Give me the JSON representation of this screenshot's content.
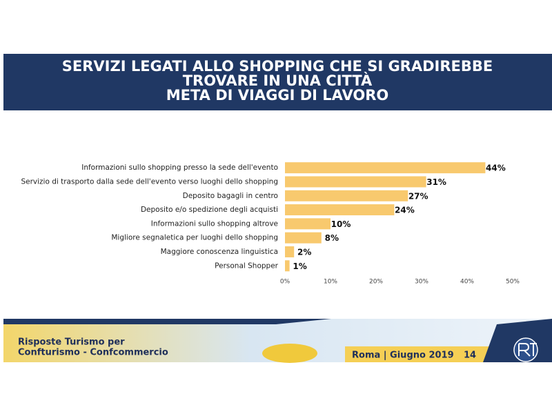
{
  "chart_data": {
    "type": "bar",
    "orientation": "horizontal",
    "title": [
      "SERVIZI LEGATI ALLO SHOPPING CHE SI GRADIREBBE",
      "TROVARE IN UNA CITTÀ",
      "META DI VIAGGI DI LAVORO"
    ],
    "categories": [
      "Informazioni sullo shopping presso la sede dell'evento",
      "Servizio di trasporto dalla sede dell'evento verso luoghi dello shopping",
      "Deposito bagagli in centro",
      "Deposito e/o spedizione degli acquisti",
      "Informazioni sullo shopping altrove",
      "Migliore segnaletica per luoghi dello shopping",
      "Maggiore conoscenza linguistica",
      "Personal Shopper"
    ],
    "values": [
      44,
      31,
      27,
      24,
      10,
      8,
      2,
      1
    ],
    "value_labels": [
      "44%",
      "31%",
      "27%",
      "24%",
      "10%",
      "8%",
      "2%",
      "1%"
    ],
    "color": "#f8c96e",
    "xlim": [
      0,
      50
    ],
    "xticks": [
      {
        "value": 0,
        "label": "0%"
      },
      {
        "value": 10,
        "label": "10%"
      },
      {
        "value": 20,
        "label": "20%"
      },
      {
        "value": 30,
        "label": "30%"
      },
      {
        "value": 40,
        "label": "40%"
      },
      {
        "value": 50,
        "label": "50%"
      }
    ],
    "grid": false
  },
  "footer": {
    "source": [
      "Risposte Turismo per",
      "Confturismo - Confcommercio"
    ],
    "place_date": "Roma | Giugno 2019",
    "page": "14"
  }
}
